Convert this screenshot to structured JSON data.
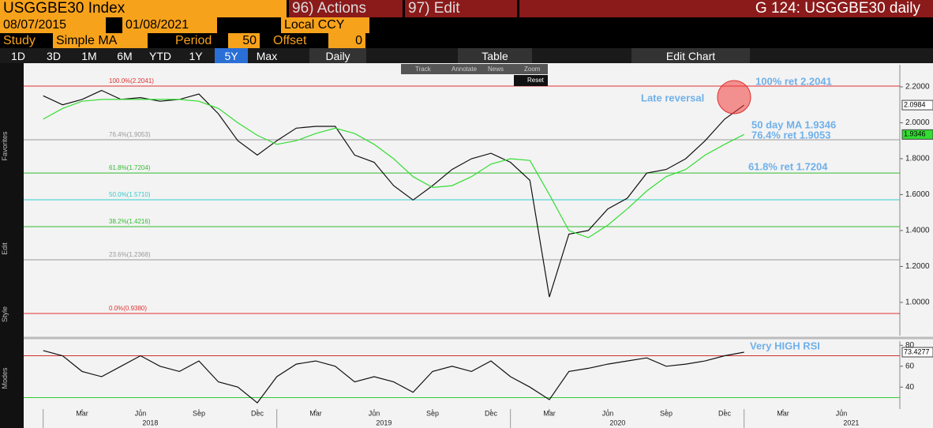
{
  "header": {
    "security": "USGGBE30 Index",
    "actions": "96) Actions",
    "edit": "97) Edit",
    "page_title": "G 124: USGGBE30 daily"
  },
  "controls": {
    "start_date": "08/07/2015",
    "end_date": "01/08/2021",
    "currency": "Local CCY",
    "study_label": "Study",
    "study": "Simple MA",
    "period_label": "Period",
    "period": "50",
    "offset_label": "Offset",
    "offset": "0"
  },
  "ranges": [
    "1D",
    "3D",
    "1M",
    "6M",
    "YTD",
    "1Y",
    "5Y",
    "Max"
  ],
  "frequency": "Daily",
  "table": "Table",
  "edit_chart": "Edit Chart",
  "chart_tools": [
    "Track",
    "Annotate",
    "News",
    "Zoom"
  ],
  "reset": "Reset",
  "sidebar": [
    "Favorites",
    "Edit",
    "Style",
    "Modes"
  ],
  "chart_data": [
    {
      "type": "line",
      "x": [
        "2018-01",
        "2018-02",
        "2018-03",
        "2018-04",
        "2018-05",
        "2018-06",
        "2018-07",
        "2018-08",
        "2018-09",
        "2018-10",
        "2018-11",
        "2018-12",
        "2019-01",
        "2019-02",
        "2019-03",
        "2019-04",
        "2019-05",
        "2019-06",
        "2019-07",
        "2019-08",
        "2019-09",
        "2019-10",
        "2019-11",
        "2019-12",
        "2020-01",
        "2020-02",
        "2020-03",
        "2020-04",
        "2020-05",
        "2020-06",
        "2020-07",
        "2020-08",
        "2020-09",
        "2020-10",
        "2020-11",
        "2020-12",
        "2021-01"
      ],
      "series": [
        {
          "color": "#111111",
          "values": [
            2.15,
            2.1,
            2.13,
            2.18,
            2.13,
            2.14,
            2.12,
            2.13,
            2.16,
            2.05,
            1.9,
            1.82,
            1.9,
            1.97,
            1.98,
            1.98,
            1.82,
            1.78,
            1.65,
            1.57,
            1.65,
            1.74,
            1.8,
            1.83,
            1.78,
            1.68,
            1.03,
            1.38,
            1.4,
            1.52,
            1.58,
            1.72,
            1.74,
            1.8,
            1.9,
            2.02,
            2.0984
          ]
        },
        {
          "color": "#33dd33",
          "values": [
            2.02,
            2.08,
            2.12,
            2.13,
            2.13,
            2.13,
            2.13,
            2.13,
            2.12,
            2.08,
            2.0,
            1.93,
            1.88,
            1.9,
            1.94,
            1.97,
            1.94,
            1.88,
            1.8,
            1.7,
            1.64,
            1.65,
            1.7,
            1.77,
            1.8,
            1.79,
            1.6,
            1.4,
            1.36,
            1.43,
            1.52,
            1.62,
            1.7,
            1.74,
            1.82,
            1.88,
            1.9346
          ]
        }
      ],
      "xlim": [
        "2017-12",
        "2021-09"
      ],
      "xticks": [
        {
          "value": "2018-03",
          "label": "Mar"
        },
        {
          "value": "2018-06",
          "label": "Jun"
        },
        {
          "value": "2018-09",
          "label": "Sep"
        },
        {
          "value": "2018-12",
          "label": "Dec"
        },
        {
          "value": "2019-03",
          "label": "Mar"
        },
        {
          "value": "2019-06",
          "label": "Jun"
        },
        {
          "value": "2019-09",
          "label": "Sep"
        },
        {
          "value": "2019-12",
          "label": "Dec"
        },
        {
          "value": "2020-03",
          "label": "Mar"
        },
        {
          "value": "2020-06",
          "label": "Jun"
        },
        {
          "value": "2020-09",
          "label": "Sep"
        },
        {
          "value": "2020-12",
          "label": "Dec"
        },
        {
          "value": "2021-03",
          "label": "Mar"
        },
        {
          "value": "2021-06",
          "label": "Jun"
        }
      ],
      "years": [
        "2018",
        "2019",
        "2020",
        "2021"
      ],
      "ylim": [
        0.815,
        2.323
      ],
      "yticks": [
        {
          "value": 1.0,
          "label": "1.0000"
        },
        {
          "value": 1.2,
          "label": "1.2000"
        },
        {
          "value": 1.4,
          "label": "1.4000"
        },
        {
          "value": 1.6,
          "label": "1.6000"
        },
        {
          "value": 1.8,
          "label": "1.8000"
        },
        {
          "value": 2.0,
          "label": "2.0000"
        },
        {
          "value": 2.2,
          "label": "2.2000"
        }
      ],
      "levels": [
        {
          "label": "100.0%(2.2041)",
          "value": 2.2041,
          "color": "#e03030"
        },
        {
          "label": "76.4%(1.9053)",
          "value": 1.9053,
          "color": "#999999"
        },
        {
          "label": "61.8%(1.7204)",
          "value": 1.7204,
          "color": "#33bb33"
        },
        {
          "label": "50.0%(1.5710)",
          "value": 1.571,
          "color": "#33cccc"
        },
        {
          "label": "38.2%(1.4216)",
          "value": 1.4216,
          "color": "#33bb33"
        },
        {
          "label": "23.6%(1.2368)",
          "value": 1.2368,
          "color": "#999999"
        },
        {
          "label": "0.0%(0.9380)",
          "value": 0.938,
          "color": "#e03030"
        }
      ],
      "annotations": [
        "Late reversal",
        "100% ret 2.2041",
        "50 day MA 1.9346",
        "76.4% ret 1.9053",
        "61.8% ret 1.7204"
      ]
    },
    {
      "type": "line",
      "x": [
        "2018-01",
        "2018-02",
        "2018-03",
        "2018-04",
        "2018-05",
        "2018-06",
        "2018-07",
        "2018-08",
        "2018-09",
        "2018-10",
        "2018-11",
        "2018-12",
        "2019-01",
        "2019-02",
        "2019-03",
        "2019-04",
        "2019-05",
        "2019-06",
        "2019-07",
        "2019-08",
        "2019-09",
        "2019-10",
        "2019-11",
        "2019-12",
        "2020-01",
        "2020-02",
        "2020-03",
        "2020-04",
        "2020-05",
        "2020-06",
        "2020-07",
        "2020-08",
        "2020-09",
        "2020-10",
        "2020-11",
        "2020-12",
        "2021-01"
      ],
      "series": [
        {
          "color": "#111111",
          "values": [
            75,
            70,
            55,
            50,
            60,
            70,
            60,
            55,
            65,
            45,
            40,
            25,
            50,
            62,
            65,
            60,
            45,
            50,
            45,
            35,
            55,
            60,
            55,
            65,
            50,
            40,
            28,
            55,
            58,
            62,
            65,
            68,
            60,
            62,
            65,
            70,
            73.4277
          ]
        }
      ],
      "xlim": [
        "2017-12",
        "2021-09"
      ],
      "ylim": [
        19,
        84
      ],
      "yticks": [
        40,
        60,
        80
      ],
      "levels": [
        {
          "value": 70,
          "color": "#d03030"
        },
        {
          "value": 30,
          "color": "#33cc33"
        }
      ],
      "annotations": [
        "Very HIGH RSI"
      ]
    }
  ]
}
